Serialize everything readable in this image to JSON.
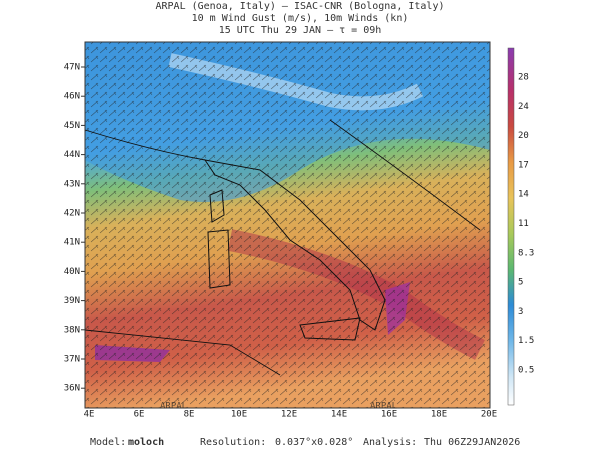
{
  "header": {
    "lines": [
      "ARPAL (Genoa, Italy)  —  ISAC-CNR (Bologna, Italy)",
      "10 m Wind Gust (m/s), 10m Winds (kn)",
      "15 UTC Thu 29 JAN  —  τ = 09h"
    ]
  },
  "map": {
    "lat_labels": [
      "47N",
      "46N",
      "45N",
      "44N",
      "43N",
      "42N",
      "41N",
      "40N",
      "39N",
      "38N",
      "37N",
      "36N"
    ],
    "lon_labels": [
      "4E",
      "6E",
      "8E",
      "10E",
      "12E",
      "14E",
      "16E",
      "18E",
      "20E"
    ],
    "watermarks": [
      "ARPAL",
      "ARPAL"
    ]
  },
  "colorbar": {
    "labels": [
      "28",
      "24",
      "20",
      "17",
      "14",
      "11",
      "8.3",
      "5",
      "3",
      "1.5",
      "0.5"
    ]
  },
  "footer": {
    "model_label": "Model:",
    "model": "moloch",
    "resolution_label": "Resolution:",
    "resolution": "0.037°x0.028°",
    "analysis_label": "Analysis:",
    "analysis": "Thu 06Z29JAN2026"
  }
}
